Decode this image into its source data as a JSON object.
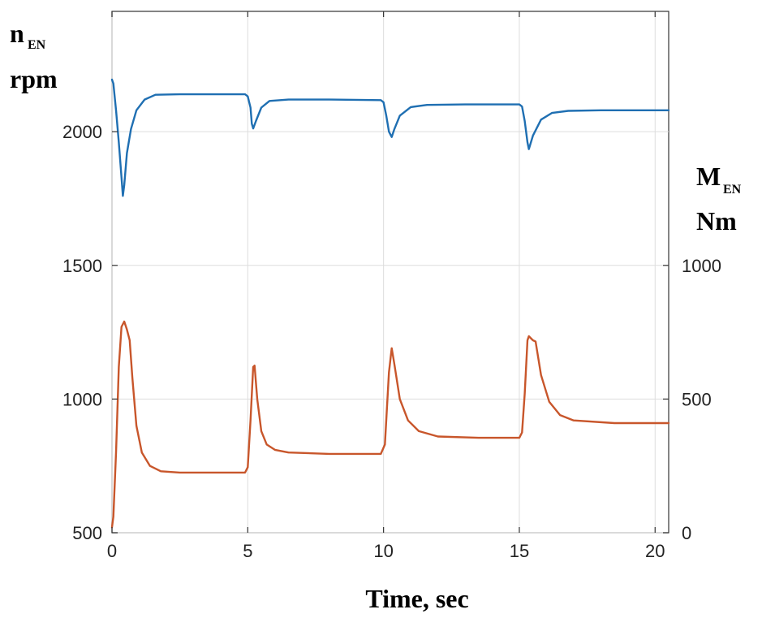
{
  "chart_data": {
    "type": "line",
    "title": "",
    "xlabel": "Time, sec",
    "ylabel_left": {
      "symbol": "n",
      "sub": "EN",
      "unit": "rpm"
    },
    "ylabel_right": {
      "symbol": "M",
      "sub": "EN",
      "unit": "Nm"
    },
    "xlim": [
      0,
      20.5
    ],
    "ylim_left": [
      500,
      2450
    ],
    "ylim_right": [
      0,
      1950
    ],
    "x_ticks": [
      0,
      5,
      10,
      15,
      20
    ],
    "y_left_ticks": [
      500,
      1000,
      1500,
      2000
    ],
    "y_right_ticks": [
      0,
      500,
      1000
    ],
    "grid": true,
    "legend": "none",
    "series": [
      {
        "axis": "left",
        "color": "#1f6fb2",
        "x": [
          0,
          0.05,
          0.15,
          0.25,
          0.35,
          0.4,
          0.45,
          0.55,
          0.7,
          0.9,
          1.2,
          1.6,
          2.5,
          4.0,
          4.9,
          5.0,
          5.1,
          5.15,
          5.2,
          5.3,
          5.5,
          5.8,
          6.5,
          8.0,
          9.9,
          10.0,
          10.1,
          10.2,
          10.3,
          10.4,
          10.6,
          11.0,
          11.6,
          13.0,
          15.0,
          15.1,
          15.2,
          15.3,
          15.35,
          15.5,
          15.8,
          16.2,
          16.8,
          18.0,
          20.0,
          20.5
        ],
        "y": [
          2195,
          2180,
          2080,
          1960,
          1830,
          1760,
          1800,
          1920,
          2010,
          2080,
          2120,
          2138,
          2140,
          2140,
          2140,
          2132,
          2090,
          2030,
          2012,
          2040,
          2090,
          2115,
          2120,
          2120,
          2118,
          2110,
          2060,
          2000,
          1980,
          2010,
          2060,
          2092,
          2100,
          2102,
          2102,
          2094,
          2040,
          1960,
          1935,
          1985,
          2045,
          2070,
          2078,
          2080,
          2080,
          2080
        ]
      },
      {
        "axis": "right",
        "color": "#c8562b",
        "x": [
          0,
          0.05,
          0.15,
          0.25,
          0.35,
          0.45,
          0.55,
          0.65,
          0.75,
          0.9,
          1.1,
          1.4,
          1.8,
          2.5,
          4.0,
          4.9,
          5.0,
          5.1,
          5.2,
          5.25,
          5.35,
          5.5,
          5.7,
          6.0,
          6.5,
          8.0,
          9.9,
          10.05,
          10.2,
          10.3,
          10.4,
          10.6,
          10.9,
          11.3,
          12.0,
          13.5,
          15.0,
          15.1,
          15.2,
          15.3,
          15.35,
          15.5,
          15.6,
          15.8,
          16.1,
          16.5,
          17.0,
          18.5,
          20.0,
          20.5
        ],
        "y": [
          20,
          60,
          300,
          620,
          770,
          790,
          760,
          720,
          580,
          400,
          300,
          250,
          230,
          225,
          225,
          225,
          245,
          420,
          620,
          625,
          500,
          380,
          330,
          310,
          300,
          295,
          295,
          330,
          600,
          690,
          630,
          500,
          420,
          380,
          360,
          355,
          355,
          375,
          520,
          720,
          735,
          720,
          715,
          590,
          490,
          440,
          420,
          410,
          410,
          410
        ]
      }
    ]
  }
}
